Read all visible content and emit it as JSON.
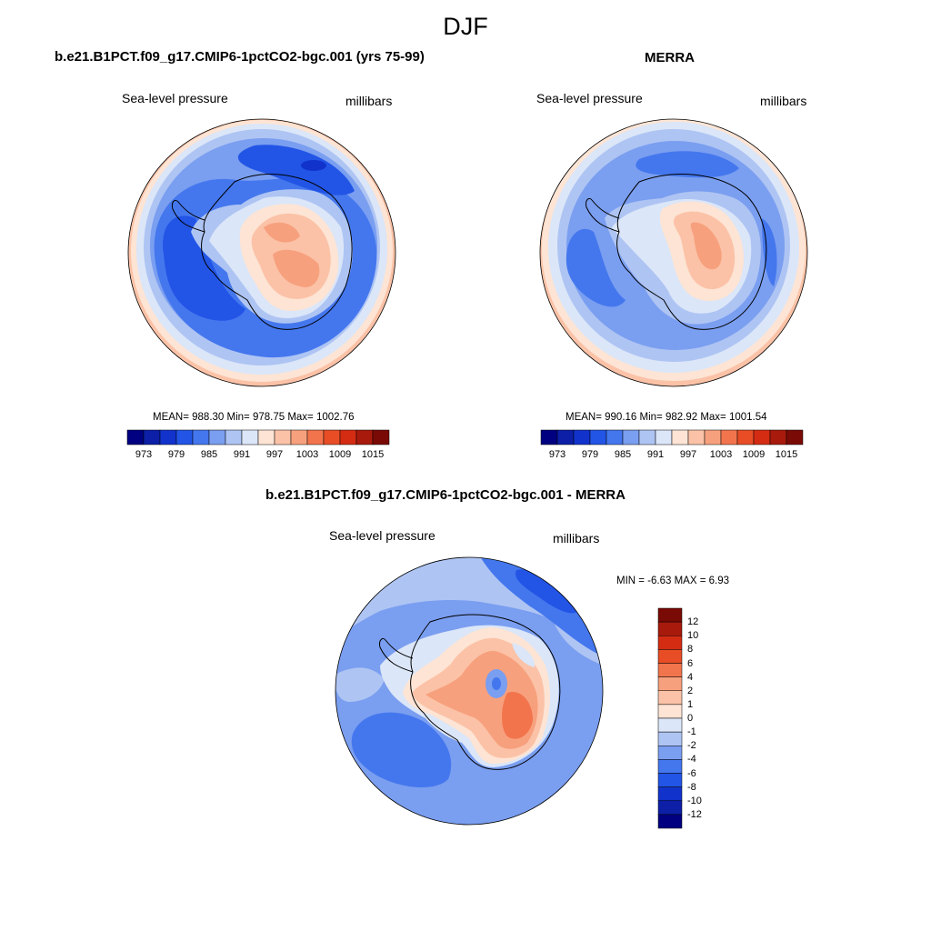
{
  "figure": {
    "title": "DJF"
  },
  "panels": [
    {
      "title": "b.e21.B1PCT.f09_g17.CMIP6-1pctCO2-bgc.001 (yrs 75-99)",
      "left_label": "Sea-level pressure",
      "right_label": "millibars",
      "stats": "MEAN= 988.30  Min= 978.75  Max= 1002.76"
    },
    {
      "title": "MERRA",
      "left_label": "Sea-level pressure",
      "right_label": "millibars",
      "stats": "MEAN= 990.16  Min= 982.92  Max= 1001.54"
    },
    {
      "title": "b.e21.B1PCT.f09_g17.CMIP6-1pctCO2-bgc.001 - MERRA",
      "left_label": "Sea-level pressure",
      "right_label": "millibars",
      "stats": "MIN =  -6.63 MAX =   6.93"
    }
  ],
  "colorbar_abs": {
    "colors": [
      "#000080",
      "#0c1fa6",
      "#1133cc",
      "#2255e6",
      "#4477ee",
      "#7a9ef0",
      "#aec4f3",
      "#dbe6f8",
      "#fde4d4",
      "#fbc2a7",
      "#f7a07d",
      "#f2744d",
      "#e84d26",
      "#d42c12",
      "#a81a0c",
      "#7a0a06"
    ],
    "tick_labels": [
      "973",
      "979",
      "985",
      "991",
      "997",
      "1003",
      "1009",
      "1015"
    ]
  },
  "colorbar_diff": {
    "colors": [
      "#000080",
      "#0c1fa6",
      "#1133cc",
      "#2255e6",
      "#4477ee",
      "#7a9ef0",
      "#aec4f3",
      "#dbe6f8",
      "#fde4d4",
      "#fbc2a7",
      "#f7a07d",
      "#f2744d",
      "#e84d26",
      "#d42c12",
      "#a81a0c",
      "#7a0a06"
    ],
    "tick_labels": [
      "12",
      "10",
      "8",
      "6",
      "4",
      "2",
      "1",
      "0",
      "-1",
      "-2",
      "-4",
      "-6",
      "-8",
      "-10",
      "-12"
    ]
  }
}
